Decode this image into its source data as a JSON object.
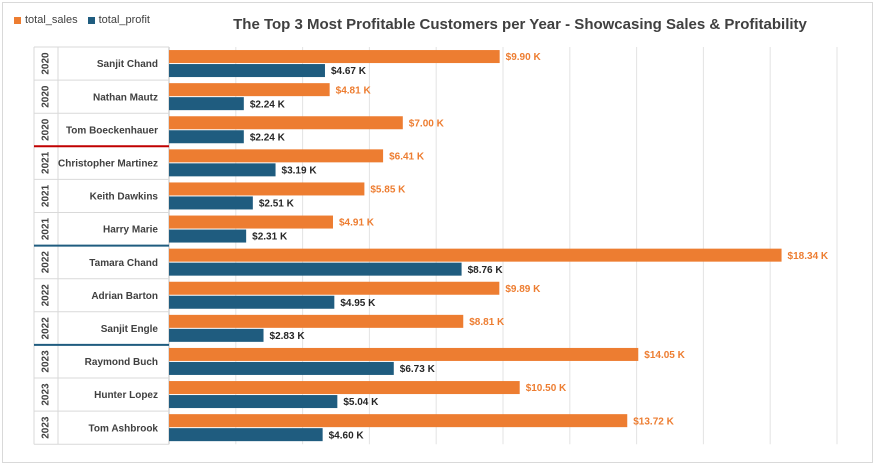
{
  "chart_data": {
    "type": "bar",
    "orientation": "horizontal",
    "title": "The Top 3 Most Profitable Customers per Year - Showcasing Sales & Profitability",
    "legend": {
      "position": "top-left"
    },
    "grid": true,
    "xlim": [
      0,
      20000
    ],
    "value_format": "$x.xx K",
    "series": [
      {
        "name": "total_sales",
        "color": "#ED7D31",
        "values": [
          9900,
          4810,
          7000,
          6410,
          5850,
          4910,
          18340,
          9890,
          8810,
          14050,
          10500,
          13720
        ],
        "labels": [
          "$9.90 K",
          "$4.81 K",
          "$7.00 K",
          "$6.41 K",
          "$5.85 K",
          "$4.91 K",
          "$18.34 K",
          "$9.89 K",
          "$8.81 K",
          "$14.05 K",
          "$10.50 K",
          "$13.72 K"
        ]
      },
      {
        "name": "total_profit",
        "color": "#1F5C7F",
        "values": [
          4670,
          2240,
          2240,
          3190,
          2510,
          2310,
          8760,
          4950,
          2830,
          6730,
          5040,
          4600
        ],
        "labels": [
          "$4.67 K",
          "$2.24 K",
          "$2.24 K",
          "$3.19 K",
          "$2.51 K",
          "$2.31 K",
          "$8.76 K",
          "$4.95 K",
          "$2.83 K",
          "$6.73 K",
          "$5.04 K",
          "$4.60 K"
        ]
      }
    ],
    "categories": [
      {
        "year": "2020",
        "customer": "Sanjit Chand"
      },
      {
        "year": "2020",
        "customer": "Nathan Mautz"
      },
      {
        "year": "2020",
        "customer": "Tom Boeckenhauer"
      },
      {
        "year": "2021",
        "customer": "Christopher Martinez"
      },
      {
        "year": "2021",
        "customer": "Keith Dawkins"
      },
      {
        "year": "2021",
        "customer": "Harry Marie"
      },
      {
        "year": "2022",
        "customer": "Tamara Chand"
      },
      {
        "year": "2022",
        "customer": "Adrian Barton"
      },
      {
        "year": "2022",
        "customer": "Sanjit Engle"
      },
      {
        "year": "2023",
        "customer": "Raymond Buch"
      },
      {
        "year": "2023",
        "customer": "Hunter Lopez"
      },
      {
        "year": "2023",
        "customer": "Tom Ashbrook"
      }
    ],
    "group_separator_colors": {
      "2021": "#C00000",
      "2022": "#1F5C7F",
      "2023": "#1F5C7F"
    }
  }
}
